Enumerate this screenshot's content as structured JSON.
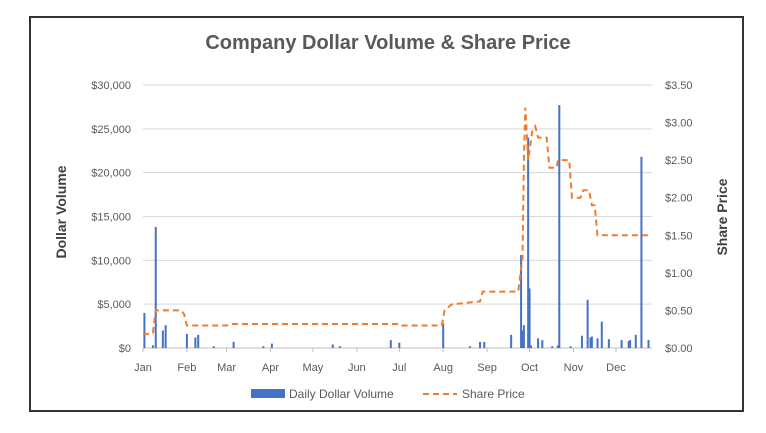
{
  "chart_data": {
    "type": "bar+line",
    "title": "Company Dollar Volume & Share Price",
    "ylabel": "Dollar Volume",
    "y2label": "Share Price",
    "ylim": [
      0,
      30000
    ],
    "y2lim": [
      0,
      3.5
    ],
    "yticks": [
      "$0",
      "$5,000",
      "$10,000",
      "$15,000",
      "$20,000",
      "$25,000",
      "$30,000"
    ],
    "y2ticks": [
      "$0.00",
      "$0.50",
      "$1.00",
      "$1.50",
      "$2.00",
      "$2.50",
      "$3.00",
      "$3.50"
    ],
    "xticks": [
      "Jan",
      "Feb",
      "Mar",
      "Apr",
      "May",
      "Jun",
      "Jul",
      "Aug",
      "Sep",
      "Oct",
      "Nov",
      "Dec"
    ],
    "grid": true,
    "legend_position": "bottom",
    "colors": {
      "volume": "#4472c4",
      "price": "#ed7d31"
    },
    "series": [
      {
        "name": "Daily Dollar Volume",
        "type": "bar",
        "points": [
          [
            "01-02",
            4000
          ],
          [
            "01-08",
            300
          ],
          [
            "01-10",
            13800
          ],
          [
            "01-15",
            2000
          ],
          [
            "01-17",
            2600
          ],
          [
            "02-01",
            1600
          ],
          [
            "02-07",
            1200
          ],
          [
            "02-09",
            1500
          ],
          [
            "02-20",
            200
          ],
          [
            "03-06",
            700
          ],
          [
            "03-27",
            200
          ],
          [
            "04-02",
            500
          ],
          [
            "05-15",
            400
          ],
          [
            "05-20",
            200
          ],
          [
            "06-25",
            900
          ],
          [
            "07-01",
            600
          ],
          [
            "08-01",
            2800
          ],
          [
            "08-20",
            200
          ],
          [
            "08-27",
            700
          ],
          [
            "08-30",
            700
          ],
          [
            "09-18",
            1500
          ],
          [
            "09-25",
            10600
          ],
          [
            "09-26",
            2000
          ],
          [
            "09-27",
            2600
          ],
          [
            "09-30",
            24000
          ],
          [
            "10-01",
            6800
          ],
          [
            "10-02",
            300
          ],
          [
            "10-07",
            1100
          ],
          [
            "10-10",
            900
          ],
          [
            "10-17",
            200
          ],
          [
            "10-21",
            300
          ],
          [
            "10-22",
            27700
          ],
          [
            "10-30",
            200
          ],
          [
            "11-07",
            1400
          ],
          [
            "11-11",
            5500
          ],
          [
            "11-13",
            1200
          ],
          [
            "11-14",
            1300
          ],
          [
            "11-18",
            1100
          ],
          [
            "11-21",
            3000
          ],
          [
            "11-26",
            1000
          ],
          [
            "12-05",
            900
          ],
          [
            "12-10",
            800
          ],
          [
            "12-11",
            900
          ],
          [
            "12-15",
            1500
          ],
          [
            "12-19",
            21800
          ],
          [
            "12-24",
            900
          ]
        ]
      },
      {
        "name": "Share Price",
        "type": "line",
        "points": [
          [
            "01-01",
            0.18
          ],
          [
            "01-08",
            0.2
          ],
          [
            "01-10",
            0.5
          ],
          [
            "01-28",
            0.5
          ],
          [
            "01-30",
            0.45
          ],
          [
            "02-01",
            0.3
          ],
          [
            "03-01",
            0.3
          ],
          [
            "03-05",
            0.32
          ],
          [
            "07-01",
            0.32
          ],
          [
            "07-03",
            0.3
          ],
          [
            "07-31",
            0.3
          ],
          [
            "08-02",
            0.5
          ],
          [
            "08-07",
            0.58
          ],
          [
            "08-27",
            0.62
          ],
          [
            "08-29",
            0.75
          ],
          [
            "09-23",
            0.75
          ],
          [
            "09-26",
            1.2
          ],
          [
            "09-27",
            2.5
          ],
          [
            "09-28",
            3.2
          ],
          [
            "09-30",
            2.5
          ],
          [
            "10-03",
            2.9
          ],
          [
            "10-05",
            2.95
          ],
          [
            "10-07",
            2.8
          ],
          [
            "10-13",
            2.8
          ],
          [
            "10-15",
            2.4
          ],
          [
            "10-20",
            2.4
          ],
          [
            "10-21",
            2.5
          ],
          [
            "10-29",
            2.5
          ],
          [
            "10-31",
            2.0
          ],
          [
            "11-06",
            2.0
          ],
          [
            "11-08",
            2.1
          ],
          [
            "11-12",
            2.1
          ],
          [
            "11-14",
            1.9
          ],
          [
            "11-16",
            1.9
          ],
          [
            "11-18",
            1.5
          ],
          [
            "12-24",
            1.5
          ]
        ]
      }
    ]
  }
}
